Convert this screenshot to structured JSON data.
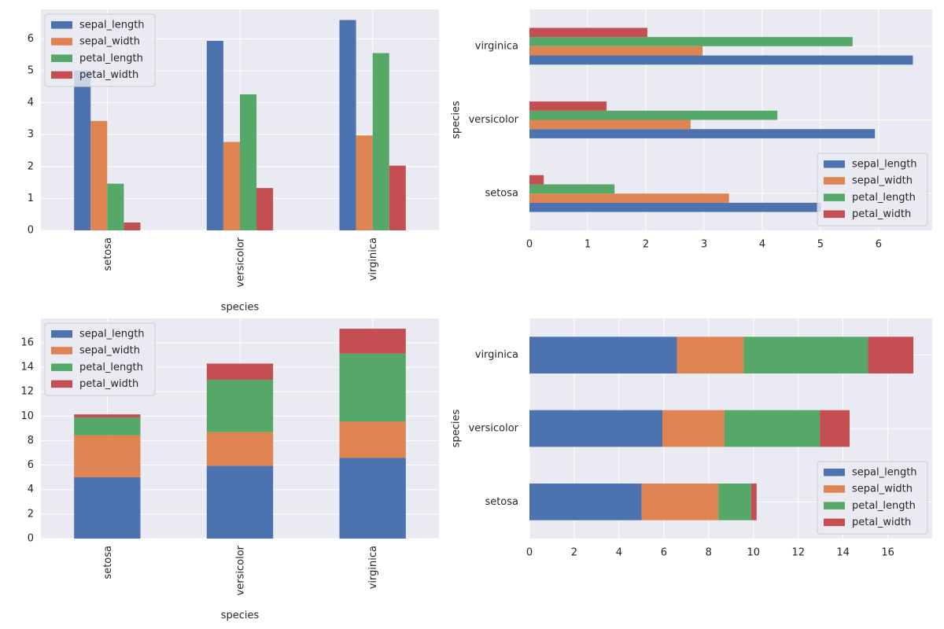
{
  "colors": {
    "panel_bg": "#eaeaf2",
    "grid": "#ffffff",
    "text": "#262626",
    "series": [
      "#4c72b0",
      "#dd8452",
      "#55a868",
      "#c44e52"
    ]
  },
  "chart_data": [
    {
      "type": "bar",
      "orientation": "vertical",
      "stacked": false,
      "categories": [
        "setosa",
        "versicolor",
        "virginica"
      ],
      "series": [
        {
          "name": "sepal_length",
          "values": [
            5.006,
            5.936,
            6.588
          ]
        },
        {
          "name": "sepal_width",
          "values": [
            3.428,
            2.77,
            2.974
          ]
        },
        {
          "name": "petal_length",
          "values": [
            1.462,
            4.26,
            5.552
          ]
        },
        {
          "name": "petal_width",
          "values": [
            0.246,
            1.326,
            2.026
          ]
        }
      ],
      "xlabel": "species",
      "ylabel": "",
      "ylim": [
        0,
        6.92
      ],
      "yticks": [
        0,
        1,
        2,
        3,
        4,
        5,
        6
      ],
      "grid": true,
      "legend_position": "upper-left"
    },
    {
      "type": "bar",
      "orientation": "horizontal",
      "stacked": false,
      "categories": [
        "setosa",
        "versicolor",
        "virginica"
      ],
      "series": [
        {
          "name": "sepal_length",
          "values": [
            5.006,
            5.936,
            6.588
          ]
        },
        {
          "name": "sepal_width",
          "values": [
            3.428,
            2.77,
            2.974
          ]
        },
        {
          "name": "petal_length",
          "values": [
            1.462,
            4.26,
            5.552
          ]
        },
        {
          "name": "petal_width",
          "values": [
            0.246,
            1.326,
            2.026
          ]
        }
      ],
      "xlabel": "",
      "ylabel": "species",
      "xlim": [
        0,
        6.92
      ],
      "xticks": [
        0,
        1,
        2,
        3,
        4,
        5,
        6
      ],
      "grid": true,
      "legend_position": "lower-right"
    },
    {
      "type": "bar",
      "orientation": "vertical",
      "stacked": true,
      "categories": [
        "setosa",
        "versicolor",
        "virginica"
      ],
      "series": [
        {
          "name": "sepal_length",
          "values": [
            5.006,
            5.936,
            6.588
          ]
        },
        {
          "name": "sepal_width",
          "values": [
            3.428,
            2.77,
            2.974
          ]
        },
        {
          "name": "petal_length",
          "values": [
            1.462,
            4.26,
            5.552
          ]
        },
        {
          "name": "petal_width",
          "values": [
            0.246,
            1.326,
            2.026
          ]
        }
      ],
      "xlabel": "species",
      "ylabel": "",
      "ylim": [
        0,
        17.98
      ],
      "yticks": [
        0,
        2,
        4,
        6,
        8,
        10,
        12,
        14,
        16
      ],
      "grid": true,
      "legend_position": "upper-left"
    },
    {
      "type": "bar",
      "orientation": "horizontal",
      "stacked": true,
      "categories": [
        "setosa",
        "versicolor",
        "virginica"
      ],
      "series": [
        {
          "name": "sepal_length",
          "values": [
            5.006,
            5.936,
            6.588
          ]
        },
        {
          "name": "sepal_width",
          "values": [
            3.428,
            2.77,
            2.974
          ]
        },
        {
          "name": "petal_length",
          "values": [
            1.462,
            4.26,
            5.552
          ]
        },
        {
          "name": "petal_width",
          "values": [
            0.246,
            1.326,
            2.026
          ]
        }
      ],
      "xlabel": "",
      "ylabel": "species",
      "xlim": [
        0,
        17.98
      ],
      "xticks": [
        0,
        2,
        4,
        6,
        8,
        10,
        12,
        14,
        16
      ],
      "grid": true,
      "legend_position": "lower-right"
    }
  ]
}
